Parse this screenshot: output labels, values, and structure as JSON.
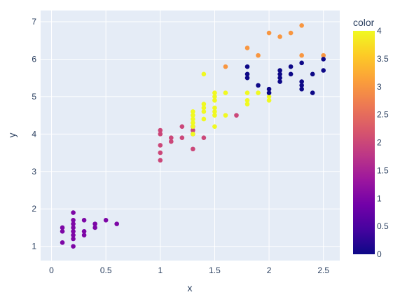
{
  "chart_data": {
    "type": "scatter",
    "xlabel": "x",
    "ylabel": "y",
    "xlim": [
      -0.1,
      2.65
    ],
    "ylim": [
      0.62,
      7.3
    ],
    "x_ticks": [
      0,
      0.5,
      1,
      1.5,
      2,
      2.5
    ],
    "x_tick_labels": [
      "0",
      "0.5",
      "1",
      "1.5",
      "2",
      "2.5"
    ],
    "y_ticks": [
      1,
      2,
      3,
      4,
      5,
      6,
      7
    ],
    "y_tick_labels": [
      "1",
      "2",
      "3",
      "4",
      "5",
      "6",
      "7"
    ],
    "grid": true,
    "colorbar": {
      "title": "color",
      "range": [
        0,
        4
      ],
      "ticks": [
        0,
        0.5,
        1,
        1.5,
        2,
        2.5,
        3,
        3.5,
        4
      ],
      "tick_labels": [
        "0",
        "0.5",
        "1",
        "1.5",
        "2",
        "2.5",
        "3",
        "3.5",
        "4"
      ],
      "colorscale": [
        "#0d0887",
        "#46039f",
        "#7201a8",
        "#9c179e",
        "#bd3786",
        "#d8576b",
        "#ed7953",
        "#fb9f3a",
        "#fdca26",
        "#f0f921"
      ]
    },
    "points": [
      {
        "x": 0.1,
        "y": 1.5,
        "c": 1
      },
      {
        "x": 0.1,
        "y": 1.4,
        "c": 1
      },
      {
        "x": 0.1,
        "y": 1.1,
        "c": 1
      },
      {
        "x": 0.2,
        "y": 1.9,
        "c": 1
      },
      {
        "x": 0.2,
        "y": 1.7,
        "c": 1
      },
      {
        "x": 0.2,
        "y": 1.6,
        "c": 1
      },
      {
        "x": 0.2,
        "y": 1.5,
        "c": 1
      },
      {
        "x": 0.2,
        "y": 1.4,
        "c": 1
      },
      {
        "x": 0.2,
        "y": 1.3,
        "c": 1
      },
      {
        "x": 0.2,
        "y": 1.2,
        "c": 1
      },
      {
        "x": 0.2,
        "y": 1.0,
        "c": 1
      },
      {
        "x": 0.3,
        "y": 1.7,
        "c": 1
      },
      {
        "x": 0.3,
        "y": 1.4,
        "c": 1
      },
      {
        "x": 0.3,
        "y": 1.3,
        "c": 1
      },
      {
        "x": 0.4,
        "y": 1.6,
        "c": 1
      },
      {
        "x": 0.4,
        "y": 1.5,
        "c": 1
      },
      {
        "x": 0.5,
        "y": 1.7,
        "c": 1
      },
      {
        "x": 0.6,
        "y": 1.6,
        "c": 1
      },
      {
        "x": 1.0,
        "y": 4.1,
        "c": 2
      },
      {
        "x": 1.0,
        "y": 4.0,
        "c": 2
      },
      {
        "x": 1.0,
        "y": 3.7,
        "c": 2
      },
      {
        "x": 1.0,
        "y": 3.5,
        "c": 2
      },
      {
        "x": 1.0,
        "y": 3.3,
        "c": 2
      },
      {
        "x": 1.1,
        "y": 3.9,
        "c": 2
      },
      {
        "x": 1.1,
        "y": 3.8,
        "c": 2
      },
      {
        "x": 1.2,
        "y": 4.2,
        "c": 2
      },
      {
        "x": 1.2,
        "y": 3.9,
        "c": 2
      },
      {
        "x": 1.3,
        "y": 4.2,
        "c": 2
      },
      {
        "x": 1.3,
        "y": 4.1,
        "c": 2
      },
      {
        "x": 1.3,
        "y": 4.0,
        "c": 2
      },
      {
        "x": 1.3,
        "y": 3.6,
        "c": 2
      },
      {
        "x": 1.4,
        "y": 3.9,
        "c": 2
      },
      {
        "x": 1.7,
        "y": 4.5,
        "c": 2
      },
      {
        "x": 1.3,
        "y": 4.6,
        "c": 4
      },
      {
        "x": 1.3,
        "y": 4.5,
        "c": 4
      },
      {
        "x": 1.3,
        "y": 4.4,
        "c": 4
      },
      {
        "x": 1.3,
        "y": 4.3,
        "c": 4
      },
      {
        "x": 1.3,
        "y": 4.2,
        "c": 4
      },
      {
        "x": 1.3,
        "y": 4.0,
        "c": 4
      },
      {
        "x": 1.4,
        "y": 5.6,
        "c": 4
      },
      {
        "x": 1.4,
        "y": 4.8,
        "c": 4
      },
      {
        "x": 1.4,
        "y": 4.7,
        "c": 4
      },
      {
        "x": 1.4,
        "y": 4.6,
        "c": 4
      },
      {
        "x": 1.4,
        "y": 4.4,
        "c": 4
      },
      {
        "x": 1.5,
        "y": 5.1,
        "c": 4
      },
      {
        "x": 1.5,
        "y": 5.0,
        "c": 4
      },
      {
        "x": 1.5,
        "y": 4.9,
        "c": 4
      },
      {
        "x": 1.5,
        "y": 4.7,
        "c": 4
      },
      {
        "x": 1.5,
        "y": 4.6,
        "c": 4
      },
      {
        "x": 1.5,
        "y": 4.5,
        "c": 4
      },
      {
        "x": 1.5,
        "y": 4.2,
        "c": 4
      },
      {
        "x": 1.6,
        "y": 5.1,
        "c": 4
      },
      {
        "x": 1.6,
        "y": 4.5,
        "c": 4
      },
      {
        "x": 1.8,
        "y": 5.1,
        "c": 4
      },
      {
        "x": 1.8,
        "y": 4.9,
        "c": 4
      },
      {
        "x": 1.8,
        "y": 4.8,
        "c": 4
      },
      {
        "x": 1.9,
        "y": 5.1,
        "c": 4
      },
      {
        "x": 2.0,
        "y": 5.0,
        "c": 4
      },
      {
        "x": 2.0,
        "y": 4.9,
        "c": 4
      },
      {
        "x": 1.6,
        "y": 5.8,
        "c": 3
      },
      {
        "x": 1.8,
        "y": 6.3,
        "c": 3
      },
      {
        "x": 1.9,
        "y": 6.1,
        "c": 3
      },
      {
        "x": 2.0,
        "y": 6.7,
        "c": 3
      },
      {
        "x": 2.1,
        "y": 6.6,
        "c": 3
      },
      {
        "x": 2.2,
        "y": 6.7,
        "c": 3
      },
      {
        "x": 2.3,
        "y": 6.9,
        "c": 3
      },
      {
        "x": 2.3,
        "y": 6.1,
        "c": 3
      },
      {
        "x": 2.5,
        "y": 6.1,
        "c": 3
      },
      {
        "x": 1.8,
        "y": 5.8,
        "c": 0
      },
      {
        "x": 1.8,
        "y": 5.6,
        "c": 0
      },
      {
        "x": 1.8,
        "y": 5.5,
        "c": 0
      },
      {
        "x": 1.9,
        "y": 5.3,
        "c": 0
      },
      {
        "x": 2.0,
        "y": 5.2,
        "c": 0
      },
      {
        "x": 2.0,
        "y": 5.1,
        "c": 0
      },
      {
        "x": 2.1,
        "y": 5.7,
        "c": 0
      },
      {
        "x": 2.1,
        "y": 5.6,
        "c": 0
      },
      {
        "x": 2.1,
        "y": 5.5,
        "c": 0
      },
      {
        "x": 2.1,
        "y": 5.4,
        "c": 0
      },
      {
        "x": 2.2,
        "y": 5.8,
        "c": 0
      },
      {
        "x": 2.2,
        "y": 5.6,
        "c": 0
      },
      {
        "x": 2.3,
        "y": 5.9,
        "c": 0
      },
      {
        "x": 2.3,
        "y": 5.4,
        "c": 0
      },
      {
        "x": 2.3,
        "y": 5.3,
        "c": 0
      },
      {
        "x": 2.3,
        "y": 5.2,
        "c": 0
      },
      {
        "x": 2.4,
        "y": 5.6,
        "c": 0
      },
      {
        "x": 2.4,
        "y": 5.1,
        "c": 0
      },
      {
        "x": 2.5,
        "y": 6.0,
        "c": 0
      },
      {
        "x": 2.5,
        "y": 5.7,
        "c": 0
      }
    ]
  }
}
